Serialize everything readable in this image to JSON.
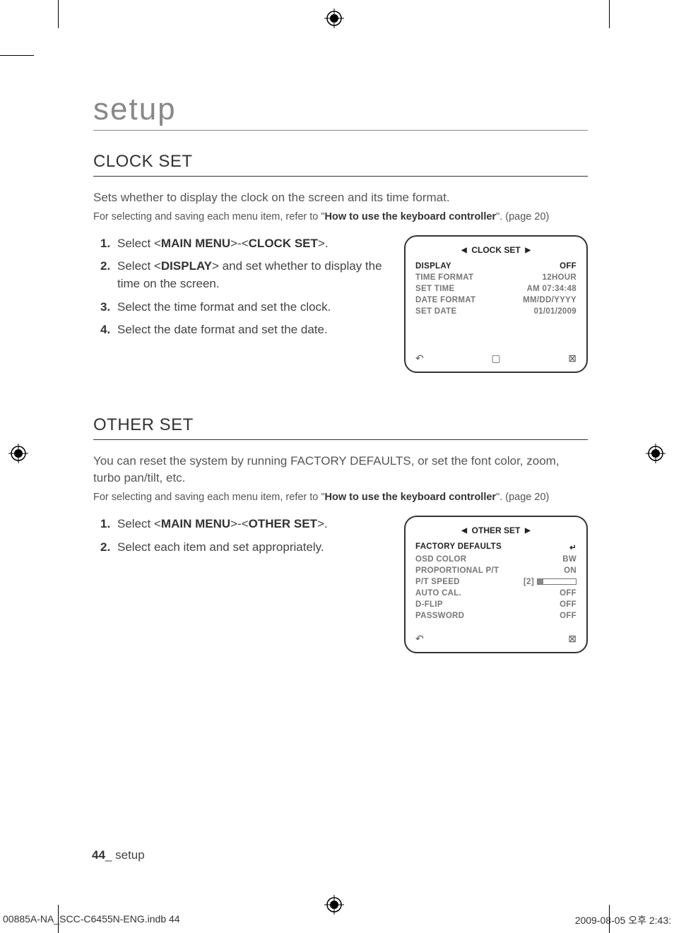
{
  "breadcrumb": "setup",
  "clock": {
    "heading": "CLOCK SET",
    "intro": "Sets whether to display the clock on the screen and its time format.",
    "note_pre": "For selecting and saving each menu item, refer to \"",
    "note_bold": "How to use the keyboard controller",
    "note_post": "\". (page 20)",
    "steps": [
      {
        "pre": "Select <",
        "b1": "MAIN MENU",
        "mid": ">-<",
        "b2": "CLOCK SET",
        "post": ">."
      },
      {
        "pre": "Select <",
        "b1": "DISPLAY",
        "mid": "> and set whether to display the time on the screen.",
        "b2": "",
        "post": ""
      },
      {
        "pre": "Select the time format and set the clock.",
        "b1": "",
        "mid": "",
        "b2": "",
        "post": ""
      },
      {
        "pre": "Select the date format and set the date.",
        "b1": "",
        "mid": "",
        "b2": "",
        "post": ""
      }
    ],
    "osd": {
      "title": "CLOCK SET",
      "rows": [
        {
          "label": "DISPLAY",
          "value": "OFF",
          "hi": true
        },
        {
          "label": "TIME FORMAT",
          "value": "12HOUR"
        },
        {
          "label": "SET TIME",
          "value": "AM 07:34:48"
        },
        {
          "label": "DATE FORMAT",
          "value": "MM/DD/YYYY"
        },
        {
          "label": "SET DATE",
          "value": "01/01/2009"
        }
      ],
      "footer_icons": 3
    }
  },
  "other": {
    "heading": "OTHER SET",
    "intro": "You can reset the system by running FACTORY DEFAULTS, or set the font color, zoom, turbo pan/tilt, etc.",
    "note_pre": "For selecting and saving each menu item, refer to \"",
    "note_bold": "How to use the keyboard controller",
    "note_post": "\". (page 20)",
    "steps": [
      {
        "pre": "Select <",
        "b1": "MAIN MENU",
        "mid": ">-<",
        "b2": "OTHER SET",
        "post": ">."
      },
      {
        "pre": "Select each item and set appropriately.",
        "b1": "",
        "mid": "",
        "b2": "",
        "post": ""
      }
    ],
    "osd": {
      "title": "OTHER SET",
      "rows": [
        {
          "label": "FACTORY DEFAULTS",
          "value": "↵",
          "hi": true
        },
        {
          "label": "OSD COLOR",
          "value": "BW"
        },
        {
          "label": "PROPORTIONAL P/T",
          "value": "ON"
        },
        {
          "label": "P/T SPEED",
          "value": "",
          "slider": true,
          "slider_label": "[2]",
          "slider_fill_pct": 15
        },
        {
          "label": "AUTO CAL.",
          "value": "OFF"
        },
        {
          "label": "D-FLIP",
          "value": "OFF"
        },
        {
          "label": "PASSWORD",
          "value": "OFF"
        }
      ],
      "footer_icons": 2
    }
  },
  "page_number": "44",
  "page_section": "setup",
  "imprint_left": "00885A-NA_SCC-C6455N-ENG.indb   44",
  "imprint_right": "2009-08-05   오후 2:43:"
}
